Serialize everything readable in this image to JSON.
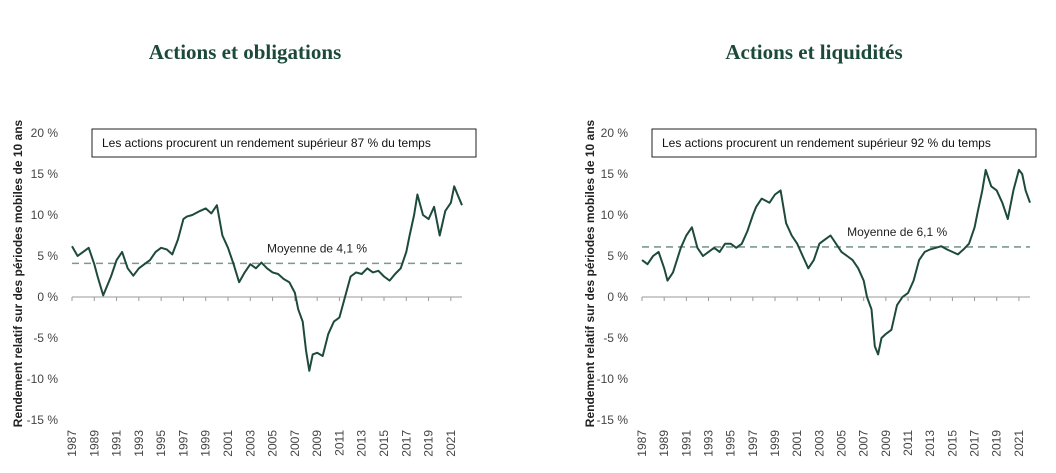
{
  "colors": {
    "line": "#1d4a3d",
    "avg_line": "#7c9a8c",
    "title": "#1c4a3a",
    "axis": "#444444"
  },
  "chart_data": [
    {
      "type": "line",
      "title": "Actions et obligations",
      "ylabel": "Rendement relatif sur des périodes mobiles de 10 ans",
      "xlabel": "",
      "ylim": [
        -15,
        20
      ],
      "xlim": [
        1987,
        2022
      ],
      "grid": false,
      "y_ticks": [
        "20 %",
        "15 %",
        "10 %",
        "5 %",
        "0 %",
        "-5 %",
        "-10 %",
        "-15 %"
      ],
      "x_ticks": [
        "1987",
        "1989",
        "1991",
        "1993",
        "1995",
        "1997",
        "1999",
        "2001",
        "2003",
        "2005",
        "2007",
        "2009",
        "2011",
        "2013",
        "2015",
        "2017",
        "2019",
        "2021"
      ],
      "annotation_box": "Les actions procurent un rendement supérieur 87 % du temps",
      "average": {
        "value": 4.1,
        "label": "Moyenne de 4,1 %"
      },
      "series": [
        {
          "x": [
            1987,
            1987.5,
            1988,
            1988.5,
            1989,
            1989.3,
            1989.8,
            1990.5,
            1991,
            1991.5,
            1992,
            1992.5,
            1993,
            1993.5,
            1994,
            1994.5,
            1995,
            1995.5,
            1996,
            1996.5,
            1997,
            1997.3,
            1997.8,
            1998.5,
            1999,
            1999.5,
            2000,
            2000.5,
            2001,
            2001.5,
            2002,
            2002.5,
            2003,
            2003.5,
            2004,
            2004.5,
            2005,
            2005.5,
            2006,
            2006.5,
            2007,
            2007.3,
            2007.7,
            2008,
            2008.3,
            2008.6,
            2009,
            2009.5,
            2010,
            2010.5,
            2011,
            2011.5,
            2012,
            2012.5,
            2013,
            2013.5,
            2014,
            2014.5,
            2015,
            2015.5,
            2016,
            2016.5,
            2017,
            2017.3,
            2017.7,
            2018,
            2018.5,
            2019,
            2019.5,
            2020,
            2020.5,
            2021,
            2021.3,
            2021.6,
            2022
          ],
          "values": [
            6.2,
            5.0,
            5.5,
            6.0,
            4.0,
            2.5,
            0.2,
            2.5,
            4.5,
            5.5,
            3.5,
            2.6,
            3.5,
            4.0,
            4.5,
            5.5,
            6.0,
            5.8,
            5.2,
            7.0,
            9.5,
            9.8,
            10.0,
            10.5,
            10.8,
            10.2,
            11.2,
            7.5,
            6.0,
            4.0,
            1.8,
            3.0,
            4.0,
            3.5,
            4.2,
            3.5,
            3.0,
            2.8,
            2.2,
            1.8,
            0.5,
            -1.5,
            -3.0,
            -6.5,
            -9.0,
            -7.0,
            -6.8,
            -7.2,
            -4.5,
            -3.0,
            -2.5,
            0.0,
            2.5,
            3.0,
            2.8,
            3.5,
            3.0,
            3.2,
            2.5,
            2.0,
            2.8,
            3.5,
            5.5,
            7.5,
            10.0,
            12.5,
            10.0,
            9.5,
            11.0,
            7.5,
            10.5,
            11.5,
            13.5,
            12.5,
            11.2
          ]
        }
      ]
    },
    {
      "type": "line",
      "title": "Actions et liquidités",
      "ylabel": "Rendement relatif sur des périodes mobiles de 10 ans",
      "xlabel": "",
      "ylim": [
        -15,
        20
      ],
      "xlim": [
        1987,
        2022
      ],
      "grid": false,
      "y_ticks": [
        "20 %",
        "15 %",
        "10 %",
        "5 %",
        "0 %",
        "-5 %",
        "-10 %",
        "-15 %"
      ],
      "x_ticks": [
        "1987",
        "1989",
        "1991",
        "1993",
        "1995",
        "1997",
        "1999",
        "2001",
        "2003",
        "2005",
        "2007",
        "2009",
        "2011",
        "2013",
        "2015",
        "2017",
        "2019",
        "2021"
      ],
      "annotation_box": "Les actions procurent un rendement supérieur 92 % du temps",
      "average": {
        "value": 6.1,
        "label": "Moyenne de 6,1 %"
      },
      "series": [
        {
          "x": [
            1987,
            1987.5,
            1988,
            1988.5,
            1989,
            1989.3,
            1989.8,
            1990.5,
            1991,
            1991.5,
            1992,
            1992.5,
            1993,
            1993.5,
            1994,
            1994.5,
            1995,
            1995.5,
            1996,
            1996.5,
            1997,
            1997.3,
            1997.8,
            1998.5,
            1999,
            1999.5,
            2000,
            2000.5,
            2001,
            2001.5,
            2002,
            2002.5,
            2003,
            2003.5,
            2004,
            2004.5,
            2005,
            2005.5,
            2006,
            2006.5,
            2007,
            2007.3,
            2007.7,
            2008,
            2008.3,
            2008.6,
            2009,
            2009.5,
            2010,
            2010.5,
            2011,
            2011.5,
            2012,
            2012.5,
            2013,
            2013.5,
            2014,
            2014.5,
            2015,
            2015.5,
            2016,
            2016.5,
            2017,
            2017.3,
            2017.7,
            2018,
            2018.5,
            2019,
            2019.5,
            2020,
            2020.5,
            2021,
            2021.3,
            2021.6,
            2022
          ],
          "values": [
            4.5,
            4.0,
            5.0,
            5.5,
            3.5,
            2.0,
            3.0,
            6.0,
            7.5,
            8.5,
            6.0,
            5.0,
            5.5,
            6.0,
            5.5,
            6.5,
            6.5,
            6.0,
            6.5,
            8.0,
            10.0,
            11.0,
            12.0,
            11.5,
            12.5,
            13.0,
            9.0,
            7.5,
            6.5,
            5.0,
            3.5,
            4.5,
            6.5,
            7.0,
            7.5,
            6.5,
            5.5,
            5.0,
            4.5,
            3.5,
            2.0,
            0.0,
            -1.5,
            -6.0,
            -7.0,
            -5.0,
            -4.5,
            -4.0,
            -1.0,
            0.0,
            0.5,
            2.0,
            4.5,
            5.5,
            5.8,
            6.0,
            6.2,
            5.8,
            5.5,
            5.2,
            5.8,
            6.5,
            8.5,
            10.5,
            13.0,
            15.5,
            13.5,
            13.0,
            11.5,
            9.5,
            13.0,
            15.5,
            15.0,
            13.0,
            11.5
          ]
        }
      ]
    }
  ]
}
